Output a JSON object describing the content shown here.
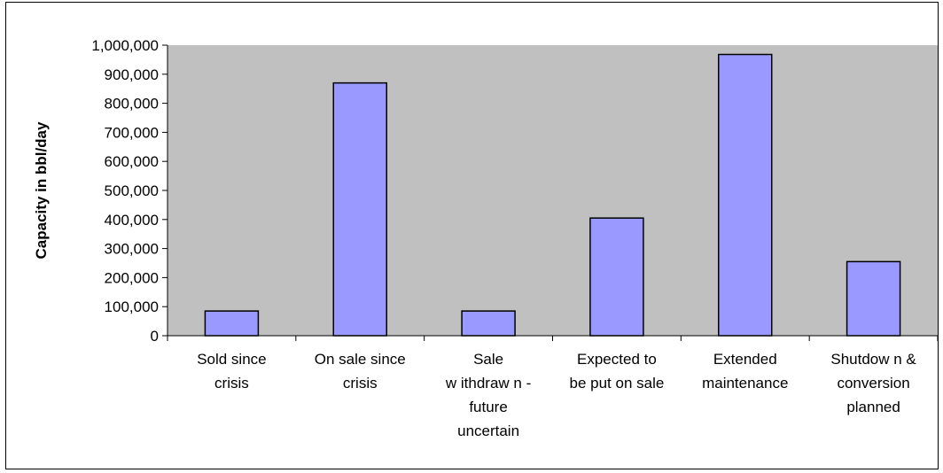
{
  "chart_data": {
    "type": "bar",
    "title": "",
    "xlabel": "",
    "ylabel": "Capacity in bbl/day",
    "ylim": [
      0,
      1000000
    ],
    "yticks": [
      0,
      100000,
      200000,
      300000,
      400000,
      500000,
      600000,
      700000,
      800000,
      900000,
      1000000
    ],
    "ytick_labels": [
      "0",
      "100,000",
      "200,000",
      "300,000",
      "400,000",
      "500,000",
      "600,000",
      "700,000",
      "800,000",
      "900,000",
      "1,000,000"
    ],
    "categories": [
      "Sold since crisis",
      "On sale since crisis",
      "Sale withdrawn - future uncertain",
      "Expected to be put on sale",
      "Extended maintenance",
      "Shutdown & conversion planned"
    ],
    "category_label_lines": [
      [
        "Sold since",
        "crisis"
      ],
      [
        "On sale since",
        "crisis"
      ],
      [
        "Sale",
        "w ithdraw n -",
        "future",
        "uncertain"
      ],
      [
        "Expected to",
        "be put on sale"
      ],
      [
        "Extended",
        "maintenance"
      ],
      [
        "Shutdow n &",
        "conversion",
        "planned"
      ]
    ],
    "values": [
      85000,
      870000,
      85000,
      405000,
      968000,
      255000
    ],
    "grid": false,
    "legend": "none",
    "colors": {
      "bar_fill": "#9999ff",
      "bar_stroke": "#000000",
      "plot_background": "#c0c0c0"
    }
  }
}
